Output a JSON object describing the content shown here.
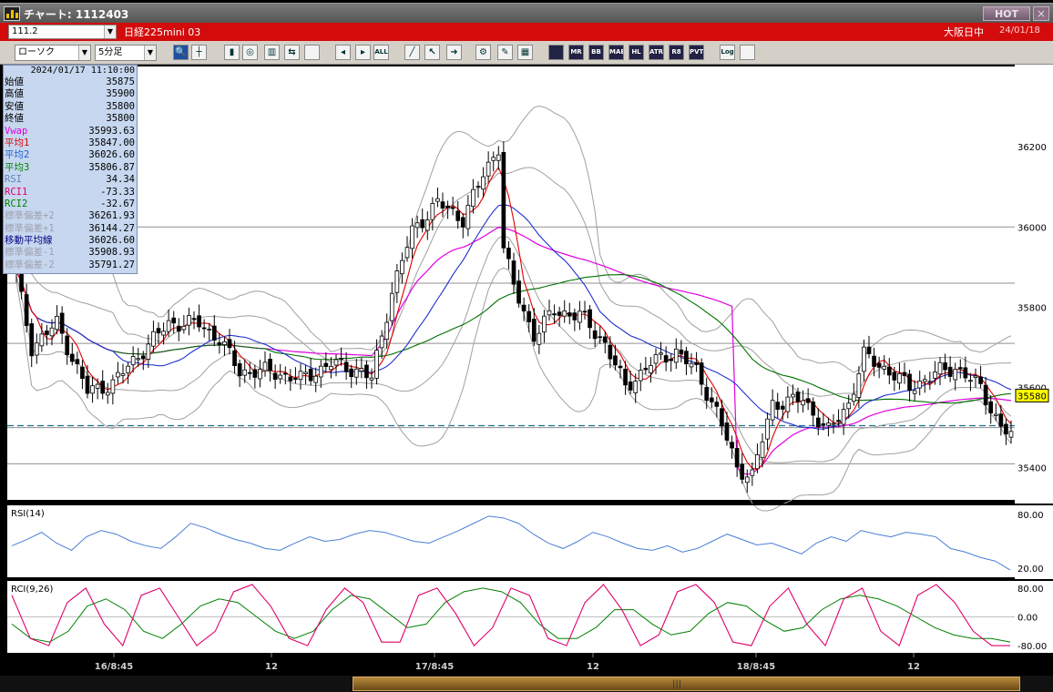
{
  "window": {
    "title": "チャート: 1112403",
    "hot_label": "HOT",
    "close_label": "×"
  },
  "header": {
    "code": "111.2",
    "instrument": "日経225mini 03",
    "market": "大阪日中",
    "date": "24/01/18"
  },
  "toolbar": {
    "chart_type": "ローソク",
    "timeframe": "5分足",
    "buttons": [
      "search",
      "crosshair",
      "candle",
      "zoom",
      "bars",
      "compare",
      "blank",
      "pan-left",
      "pan-right",
      "all",
      "draw",
      "pointer",
      "arrow",
      "settings",
      "wrench",
      "palette",
      "ma",
      "mr",
      "bb",
      "mae",
      "hl",
      "atr",
      "pnf",
      "pvt",
      "log",
      "export"
    ],
    "button_labels": {
      "all": "ALL",
      "mr": "MR",
      "bb": "BB",
      "mae": "MAE",
      "hl": "HL",
      "atr": "ATR",
      "pnf": "R8",
      "pvt": "PVT",
      "log": "Log"
    }
  },
  "info": {
    "timestamp": "2024/01/17 11:10:00",
    "rows": [
      {
        "label": "始値",
        "value": "35875",
        "color": "#000000"
      },
      {
        "label": "高値",
        "value": "35900",
        "color": "#000000"
      },
      {
        "label": "安値",
        "value": "35800",
        "color": "#000000"
      },
      {
        "label": "終値",
        "value": "35800",
        "color": "#000000"
      },
      {
        "label": "Vwap",
        "value": "35993.63",
        "color": "#e000e0"
      },
      {
        "label": "平均1",
        "value": "35847.00",
        "color": "#e00000"
      },
      {
        "label": "平均2",
        "value": "36026.60",
        "color": "#2060d0"
      },
      {
        "label": "平均3",
        "value": "35806.87",
        "color": "#008000"
      },
      {
        "label": "RSI",
        "value": "34.34",
        "color": "#6080c0"
      },
      {
        "label": "RCI1",
        "value": "-73.33",
        "color": "#e0006a"
      },
      {
        "label": "RCI2",
        "value": "-32.67",
        "color": "#008000"
      },
      {
        "label": "標準偏差+2",
        "value": "36261.93",
        "color": "#a0a0b0"
      },
      {
        "label": "標準偏差+1",
        "value": "36144.27",
        "color": "#a0a0b0"
      },
      {
        "label": "移動平均線",
        "value": "36026.60",
        "color": "#000080"
      },
      {
        "label": "標準偏差-1",
        "value": "35908.93",
        "color": "#a0a0b0"
      },
      {
        "label": "標準偏差-2",
        "value": "35791.27",
        "color": "#a0a0b0"
      }
    ]
  },
  "colors": {
    "background": "#000000",
    "price_panel": "#ffffff",
    "candle_up": "#ffffff",
    "candle_down": "#000000",
    "ma1": "#e00000",
    "ma2": "#2030d0",
    "ma3": "#007000",
    "vwap": "#e000e0",
    "bands": "#a0a0a0",
    "rsi": "#4a7fd6",
    "rci1": "#e0006a",
    "rci2": "#008000",
    "current_price": "#ffff00",
    "dashed_line": "#1f6f8f"
  },
  "chart_data": {
    "type": "candlestick",
    "interval": "5分足",
    "price_axis": {
      "ticks": [
        "36200",
        "36000",
        "35800",
        "35600",
        "35400"
      ],
      "ylim": [
        35320,
        36400
      ],
      "current_price": "35580"
    },
    "x_axis": {
      "labels": [
        "16/8:45",
        "12",
        "17/8:45",
        "12",
        "18/8:45",
        "12"
      ]
    },
    "horizontal_lines": [
      36000,
      35860,
      35710,
      35500,
      35410
    ],
    "dashed_line": 35505,
    "close_path": [
      [
        0,
        35880
      ],
      [
        3,
        35700
      ],
      [
        8,
        35760
      ],
      [
        14,
        35590
      ],
      [
        19,
        35610
      ],
      [
        24,
        35680
      ],
      [
        30,
        35760
      ],
      [
        36,
        35760
      ],
      [
        40,
        35720
      ],
      [
        44,
        35640
      ],
      [
        50,
        35640
      ],
      [
        56,
        35620
      ],
      [
        62,
        35660
      ],
      [
        68,
        35640
      ],
      [
        70,
        35620
      ],
      [
        74,
        35840
      ],
      [
        78,
        35990
      ],
      [
        83,
        36060
      ],
      [
        88,
        36020
      ],
      [
        92,
        36130
      ],
      [
        95,
        36200
      ],
      [
        96,
        35950
      ],
      [
        98,
        35850
      ],
      [
        102,
        35730
      ],
      [
        106,
        35790
      ],
      [
        111,
        35780
      ],
      [
        116,
        35710
      ],
      [
        120,
        35600
      ],
      [
        125,
        35660
      ],
      [
        130,
        35690
      ],
      [
        134,
        35640
      ],
      [
        138,
        35540
      ],
      [
        142,
        35400
      ],
      [
        145,
        35380
      ],
      [
        149,
        35560
      ],
      [
        155,
        35570
      ],
      [
        160,
        35490
      ],
      [
        164,
        35560
      ],
      [
        167,
        35680
      ],
      [
        172,
        35640
      ],
      [
        176,
        35600
      ],
      [
        182,
        35640
      ],
      [
        185,
        35650
      ],
      [
        190,
        35600
      ],
      [
        194,
        35500
      ],
      [
        196,
        35480
      ]
    ],
    "indicators": {
      "rsi": {
        "label": "RSI(14)",
        "ticks": [
          "80.00",
          "20.00"
        ],
        "ylim": [
          10,
          90
        ],
        "values": [
          45,
          52,
          60,
          48,
          40,
          55,
          62,
          58,
          50,
          45,
          42,
          55,
          70,
          65,
          58,
          52,
          48,
          42,
          40,
          48,
          55,
          50,
          52,
          58,
          62,
          60,
          55,
          50,
          48,
          55,
          62,
          70,
          78,
          76,
          70,
          58,
          48,
          42,
          50,
          60,
          55,
          48,
          42,
          40,
          45,
          38,
          42,
          50,
          58,
          52,
          46,
          48,
          42,
          36,
          48,
          55,
          50,
          62,
          58,
          55,
          60,
          58,
          55,
          42,
          38,
          32,
          28,
          18
        ]
      },
      "rci": {
        "label": "RCI(9,26)",
        "ticks": [
          "80.00",
          "0.00",
          "-80.00"
        ],
        "ylim": [
          -100,
          100
        ],
        "rci1": [
          60,
          -60,
          -80,
          40,
          80,
          -20,
          -80,
          60,
          80,
          0,
          -80,
          -40,
          70,
          90,
          30,
          -60,
          -80,
          20,
          80,
          40,
          -70,
          -70,
          60,
          80,
          10,
          -80,
          -30,
          80,
          60,
          -60,
          -80,
          40,
          90,
          20,
          -80,
          -50,
          70,
          90,
          40,
          -70,
          -80,
          30,
          80,
          -20,
          -80,
          50,
          80,
          -40,
          -80,
          60,
          90,
          40,
          -40,
          -80,
          -80
        ],
        "rci2": [
          -20,
          -60,
          -70,
          -40,
          30,
          50,
          20,
          -40,
          -60,
          -20,
          30,
          50,
          40,
          0,
          -40,
          -60,
          -40,
          20,
          60,
          50,
          10,
          -30,
          -20,
          40,
          70,
          80,
          70,
          40,
          -20,
          -60,
          -60,
          -30,
          20,
          20,
          -20,
          -50,
          -40,
          10,
          40,
          30,
          -10,
          -40,
          -30,
          20,
          50,
          60,
          50,
          30,
          0,
          -30,
          -50,
          -60,
          -60,
          -70
        ]
      }
    }
  }
}
